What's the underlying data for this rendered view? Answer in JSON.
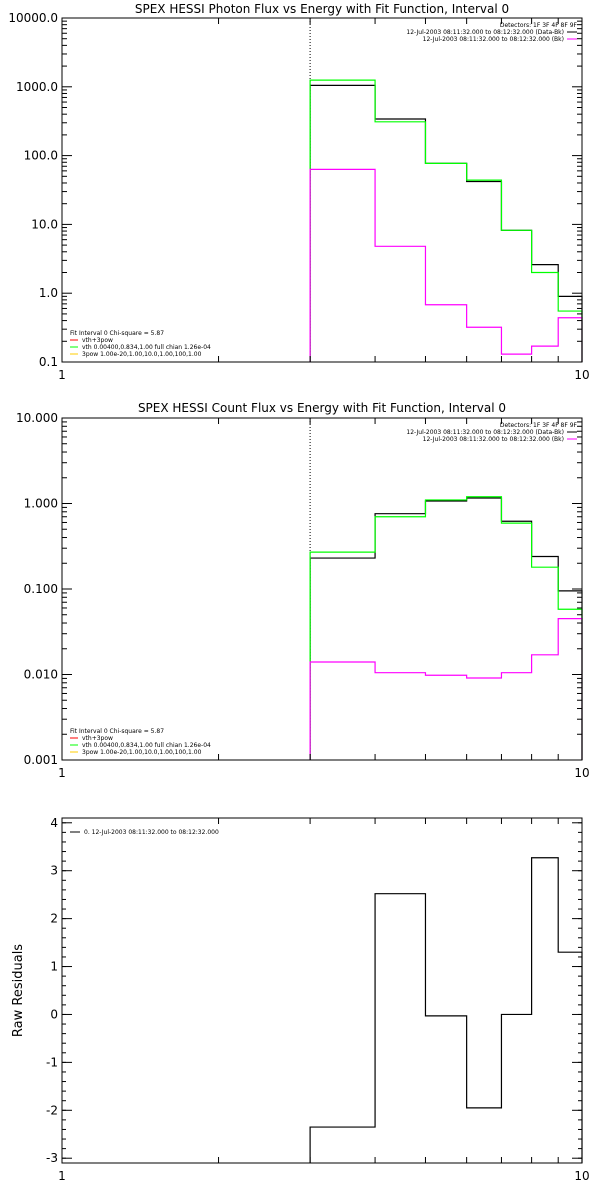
{
  "chart_data": [
    {
      "type": "line",
      "title": "SPEX HESSI Photon Flux vs Energy with Fit Function, Interval 0",
      "xlabel": "",
      "ylabel": "",
      "x_scale": "log",
      "y_scale": "log",
      "xlim": [
        1,
        10
      ],
      "ylim": [
        0.1,
        10000
      ],
      "x_ticks": [
        1,
        10
      ],
      "x_tick_labels": [
        "1",
        "10"
      ],
      "y_ticks": [
        0.1,
        1,
        10,
        100,
        1000,
        10000
      ],
      "y_tick_labels": [
        "0.1",
        "1.0",
        "10.0",
        "100.0",
        "1000.0",
        "10000.0"
      ],
      "grid": false,
      "vline_x": 3.0,
      "header": [
        "Detectors: 1F 3F 4F 8F 9F"
      ],
      "legend": [
        {
          "text": "12-Jul-2003 08:11:32.000 to 08:12:32.000 (Data-Bk)",
          "color": "#000000"
        },
        {
          "text": "12-Jul-2003 08:11:32.000 to 08:12:32.000 (Bk)",
          "color": "#ff00ff"
        }
      ],
      "fit_info": {
        "title": "Fit Interval 0   Chi-square = 5.87",
        "lines": [
          {
            "text": "vth+3pow",
            "color": "#ff0000"
          },
          {
            "text": "vth 0.00400,0.834,1.00   full chian 1.26e-04",
            "color": "#00ff00"
          },
          {
            "text": "3pow 1.00e-20,1.00,10.0,1.00,100,1.00",
            "color": "#ffcc00"
          }
        ]
      },
      "edges": [
        3.0,
        4.0,
        5.0,
        6.0,
        7.0,
        8.0,
        9.0,
        10.0
      ],
      "series": [
        {
          "color": "#000000",
          "values": [
            1050,
            340,
            77,
            42,
            8.2,
            2.6,
            0.9
          ]
        },
        {
          "color": "#00ff00",
          "values": [
            1250,
            310,
            77,
            44,
            8.2,
            2.0,
            0.55
          ]
        },
        {
          "color": "#ff00ff",
          "values": [
            63,
            4.8,
            0.68,
            0.32,
            0.13,
            0.17,
            0.44
          ]
        }
      ]
    },
    {
      "type": "line",
      "title": "SPEX HESSI Count Flux vs Energy with Fit Function, Interval 0",
      "xlabel": "",
      "ylabel": "",
      "x_scale": "log",
      "y_scale": "log",
      "xlim": [
        1,
        10
      ],
      "ylim": [
        0.001,
        10
      ],
      "x_ticks": [
        1,
        10
      ],
      "x_tick_labels": [
        "1",
        "10"
      ],
      "y_ticks": [
        0.001,
        0.01,
        0.1,
        1,
        10
      ],
      "y_tick_labels": [
        "0.001",
        "0.010",
        "0.100",
        "1.000",
        "10.000"
      ],
      "grid": false,
      "vline_x": 3.0,
      "header": [
        "Detectors: 1F 3F 4F 8F 9F"
      ],
      "legend": [
        {
          "text": "12-Jul-2003 08:11:32.000 to 08:12:32.000 (Data-Bk)",
          "color": "#000000"
        },
        {
          "text": "12-Jul-2003 08:11:32.000 to 08:12:32.000 (Bk)",
          "color": "#ff00ff"
        }
      ],
      "fit_info": {
        "title": "Fit Interval 0   Chi-square = 5.87",
        "lines": [
          {
            "text": "vth+3pow",
            "color": "#ff0000"
          },
          {
            "text": "vth 0.00400,0.834,1.00   full chian 1.26e-04",
            "color": "#00ff00"
          },
          {
            "text": "3pow 1.00e-20,1.00,10.0,1.00,100,1.00",
            "color": "#ffcc00"
          }
        ]
      },
      "edges": [
        3.0,
        4.0,
        5.0,
        6.0,
        7.0,
        8.0,
        9.0,
        10.0
      ],
      "series": [
        {
          "color": "#000000",
          "values": [
            0.23,
            0.76,
            1.07,
            1.16,
            0.62,
            0.24,
            0.095
          ]
        },
        {
          "color": "#00ff00",
          "values": [
            0.27,
            0.7,
            1.1,
            1.2,
            0.59,
            0.18,
            0.058
          ]
        },
        {
          "color": "#ff00ff",
          "values": [
            0.014,
            0.0105,
            0.0098,
            0.0091,
            0.0105,
            0.017,
            0.045
          ]
        }
      ]
    },
    {
      "type": "line",
      "title": "",
      "xlabel": "",
      "ylabel": "Raw Residuals",
      "x_scale": "log",
      "y_scale": "linear",
      "xlim": [
        1,
        10
      ],
      "ylim": [
        -3.1,
        4.1
      ],
      "x_ticks": [
        1,
        10
      ],
      "x_tick_labels": [
        "1",
        "10"
      ],
      "y_ticks": [
        -3,
        -2,
        -1,
        0,
        1,
        2,
        3,
        4
      ],
      "y_tick_labels": [
        "-3",
        "-2",
        "-1",
        "0",
        "1",
        "2",
        "3",
        "4"
      ],
      "grid": false,
      "legend": [
        {
          "text": "0. 12-Jul-2003 08:11:32.000 to 08:12:32.000",
          "color": "#000000"
        }
      ],
      "edges": [
        3.0,
        4.0,
        5.0,
        6.0,
        7.0,
        8.0,
        9.0,
        10.0
      ],
      "series": [
        {
          "color": "#000000",
          "values": [
            -2.35,
            2.52,
            -0.03,
            -1.95,
            0.0,
            3.27,
            1.3
          ]
        }
      ]
    }
  ]
}
